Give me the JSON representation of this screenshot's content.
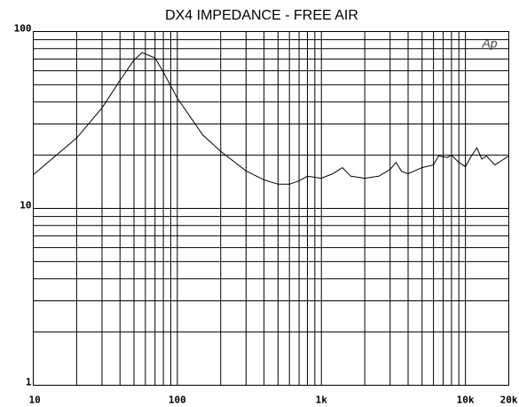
{
  "chart_data": {
    "type": "line",
    "title": "DX4 IMPEDANCE - FREE AIR",
    "logo": "Ap",
    "x": [
      10,
      20,
      30,
      40,
      50,
      57,
      70,
      80,
      100,
      150,
      200,
      300,
      400,
      500,
      600,
      700,
      800,
      1000,
      1200,
      1400,
      1600,
      2000,
      2500,
      3000,
      3300,
      3600,
      4000,
      5000,
      6000,
      6500,
      7500,
      8000,
      9000,
      10000,
      11000,
      12000,
      13000,
      14000,
      16000,
      20000
    ],
    "series": [
      {
        "color": "#000000",
        "values": [
          15.5,
          25,
          37,
          53,
          69,
          76,
          71,
          59,
          42,
          26,
          21,
          16.3,
          14.5,
          13.7,
          13.7,
          14.3,
          15.2,
          14.8,
          15.7,
          17,
          15.2,
          14.8,
          15.2,
          16.6,
          18.2,
          16.2,
          15.7,
          17,
          17.6,
          19.8,
          19.4,
          20,
          18.2,
          17.2,
          19.8,
          22,
          19,
          19.8,
          17.6,
          19.8
        ]
      }
    ],
    "xscale": "log",
    "yscale": "log",
    "xlim": [
      10,
      20000
    ],
    "ylim": [
      1,
      100
    ],
    "xticks": [
      10,
      100,
      {
        "value": 1000,
        "label": "1k"
      },
      {
        "value": 10000,
        "label": "10k"
      },
      {
        "value": 20000,
        "label": "20k"
      }
    ],
    "yticks": [
      1,
      10,
      100
    ],
    "xminor": [
      20,
      30,
      40,
      50,
      60,
      70,
      80,
      90,
      200,
      300,
      400,
      500,
      600,
      700,
      800,
      900,
      2000,
      3000,
      4000,
      5000,
      6000,
      7000,
      8000,
      9000
    ],
    "yminor": [
      2,
      3,
      4,
      5,
      6,
      7,
      8,
      9,
      20,
      30,
      40,
      50,
      60,
      70,
      80,
      90
    ],
    "grid": true
  }
}
